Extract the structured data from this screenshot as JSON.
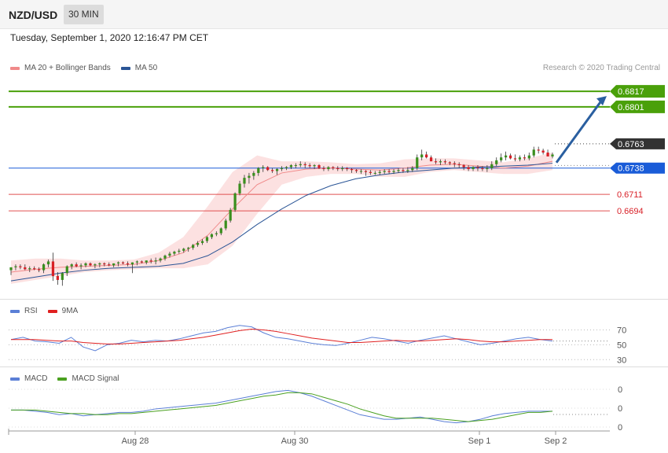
{
  "header": {
    "pair": "NZD/USD",
    "timeframe": "30 MIN",
    "datetime": "Tuesday, September 1, 2020 12:16:47 PM CET"
  },
  "legends": {
    "main": [
      {
        "label": "MA 20 + Bollinger Bands",
        "color": "#f08a8a"
      },
      {
        "label": "MA 50",
        "color": "#2a5596"
      }
    ],
    "rsi": [
      {
        "label": "RSI",
        "color": "#5b7fd6"
      },
      {
        "label": "9MA",
        "color": "#e02020"
      }
    ],
    "macd": [
      {
        "label": "MACD",
        "color": "#5b7fd6"
      },
      {
        "label": "MACD Signal",
        "color": "#4aa020"
      }
    ]
  },
  "credit": "Research © 2020 Trading Central",
  "colors": {
    "up": "#3a8f1e",
    "down": "#d81f26",
    "resistance": "#4aa00a",
    "pivot": "#1a5cd8",
    "support": "#e05050",
    "current": "#333333"
  },
  "chart_data": [
    {
      "type": "candlestick",
      "title": "NZD/USD",
      "timeframe": "30 MIN",
      "x_tick_labels": [
        "Aug 28",
        "Aug 30",
        "Sep 1",
        "Sep 2"
      ],
      "ylim": [
        0.661,
        0.683
      ],
      "candles": {
        "open": [
          0.6633,
          0.6636,
          0.6637,
          0.6636,
          0.6634,
          0.6635,
          0.6634,
          0.6633,
          0.6639,
          0.6642,
          0.6627,
          0.6623,
          0.663,
          0.6637,
          0.6639,
          0.6637,
          0.6638,
          0.664,
          0.6638,
          0.6639,
          0.664,
          0.6639,
          0.6638,
          0.664,
          0.6641,
          0.664,
          0.6639,
          0.6641,
          0.6642,
          0.6641,
          0.6643,
          0.6642,
          0.6643,
          0.6645,
          0.6648,
          0.665,
          0.6652,
          0.6653,
          0.6655,
          0.6656,
          0.6659,
          0.6661,
          0.6663,
          0.6667,
          0.667,
          0.6671,
          0.6676,
          0.6684,
          0.6695,
          0.6712,
          0.6722,
          0.6728,
          0.673,
          0.6733,
          0.6738,
          0.6739,
          0.6736,
          0.6735,
          0.6737,
          0.6738,
          0.6739,
          0.6741,
          0.6741,
          0.6742,
          0.6741,
          0.674,
          0.6741,
          0.6738,
          0.6737,
          0.6739,
          0.6738,
          0.6737,
          0.6738,
          0.6737,
          0.6736,
          0.6735,
          0.6735,
          0.6734,
          0.6733,
          0.6733,
          0.6734,
          0.6735,
          0.6734,
          0.6735,
          0.6736,
          0.6735,
          0.6736,
          0.6738,
          0.6749,
          0.6752,
          0.6749,
          0.6745,
          0.6744,
          0.6745,
          0.6744,
          0.6743,
          0.6742,
          0.6741,
          0.6739,
          0.6737,
          0.6739,
          0.6738,
          0.6737,
          0.6738,
          0.6742,
          0.6746,
          0.6749,
          0.6751,
          0.6748,
          0.6747,
          0.6749,
          0.6748,
          0.6751,
          0.6757,
          0.6756,
          0.6754,
          0.675
        ],
        "high": [
          0.6635,
          0.6639,
          0.6639,
          0.6639,
          0.6637,
          0.6637,
          0.6636,
          0.664,
          0.6644,
          0.6651,
          0.6631,
          0.6631,
          0.6638,
          0.664,
          0.6641,
          0.664,
          0.6641,
          0.6641,
          0.664,
          0.6641,
          0.6641,
          0.6641,
          0.664,
          0.6642,
          0.6642,
          0.6642,
          0.6641,
          0.6643,
          0.6643,
          0.6643,
          0.6645,
          0.6646,
          0.6646,
          0.6649,
          0.6652,
          0.6653,
          0.6655,
          0.6656,
          0.6657,
          0.666,
          0.6663,
          0.6665,
          0.6668,
          0.6671,
          0.6673,
          0.6677,
          0.6686,
          0.6697,
          0.6713,
          0.6725,
          0.6731,
          0.6733,
          0.6735,
          0.6739,
          0.6741,
          0.674,
          0.6738,
          0.6738,
          0.674,
          0.674,
          0.6742,
          0.6743,
          0.6745,
          0.6744,
          0.6743,
          0.6742,
          0.6742,
          0.674,
          0.674,
          0.674,
          0.674,
          0.674,
          0.6739,
          0.6738,
          0.6737,
          0.6737,
          0.6736,
          0.6736,
          0.6735,
          0.6736,
          0.6737,
          0.6737,
          0.6737,
          0.6738,
          0.6738,
          0.6739,
          0.674,
          0.6752,
          0.6757,
          0.6755,
          0.6751,
          0.6748,
          0.6747,
          0.6747,
          0.6745,
          0.6745,
          0.6744,
          0.6742,
          0.6741,
          0.674,
          0.6741,
          0.674,
          0.6741,
          0.6745,
          0.6749,
          0.6753,
          0.6755,
          0.6753,
          0.6752,
          0.6751,
          0.6752,
          0.6754,
          0.676,
          0.676,
          0.6758,
          0.6757,
          0.6754
        ],
        "low": [
          0.6628,
          0.6633,
          0.6634,
          0.6633,
          0.6631,
          0.6633,
          0.6631,
          0.663,
          0.6636,
          0.6622,
          0.6618,
          0.6617,
          0.6627,
          0.6634,
          0.6636,
          0.6634,
          0.6636,
          0.6637,
          0.6635,
          0.6636,
          0.6637,
          0.6637,
          0.6636,
          0.6637,
          0.6639,
          0.6637,
          0.663,
          0.6638,
          0.664,
          0.6639,
          0.664,
          0.6639,
          0.6641,
          0.6643,
          0.6646,
          0.6648,
          0.665,
          0.6651,
          0.6652,
          0.6654,
          0.6657,
          0.6659,
          0.6661,
          0.6665,
          0.6668,
          0.6669,
          0.6674,
          0.6682,
          0.6693,
          0.671,
          0.6718,
          0.6722,
          0.6726,
          0.673,
          0.6734,
          0.6735,
          0.6733,
          0.6731,
          0.6735,
          0.6736,
          0.6737,
          0.6738,
          0.6739,
          0.6738,
          0.6738,
          0.6737,
          0.6737,
          0.6735,
          0.6735,
          0.6736,
          0.6735,
          0.6735,
          0.6735,
          0.6733,
          0.6733,
          0.6732,
          0.673,
          0.6731,
          0.6731,
          0.6731,
          0.6732,
          0.6732,
          0.6732,
          0.6733,
          0.6733,
          0.6733,
          0.6734,
          0.6736,
          0.6746,
          0.6748,
          0.6745,
          0.6742,
          0.6741,
          0.6742,
          0.6741,
          0.6739,
          0.6738,
          0.6736,
          0.6735,
          0.6735,
          0.6735,
          0.6735,
          0.6734,
          0.6736,
          0.674,
          0.6744,
          0.6746,
          0.6747,
          0.6745,
          0.6745,
          0.6746,
          0.6746,
          0.6749,
          0.6753,
          0.6752,
          0.675,
          0.6748
        ],
        "close": [
          0.6636,
          0.6637,
          0.6636,
          0.6634,
          0.6635,
          0.6634,
          0.6633,
          0.6639,
          0.6642,
          0.6627,
          0.6623,
          0.663,
          0.6637,
          0.6639,
          0.6637,
          0.6638,
          0.664,
          0.6638,
          0.6639,
          0.664,
          0.6639,
          0.6638,
          0.664,
          0.6641,
          0.664,
          0.6639,
          0.6641,
          0.6642,
          0.6641,
          0.6643,
          0.6642,
          0.6643,
          0.6645,
          0.6648,
          0.665,
          0.6652,
          0.6653,
          0.6655,
          0.6656,
          0.6659,
          0.6661,
          0.6663,
          0.6667,
          0.667,
          0.6671,
          0.6676,
          0.6684,
          0.6695,
          0.6712,
          0.6722,
          0.6728,
          0.673,
          0.6733,
          0.6738,
          0.6739,
          0.6736,
          0.6735,
          0.6737,
          0.6738,
          0.6739,
          0.6741,
          0.6741,
          0.6742,
          0.6741,
          0.674,
          0.6741,
          0.6738,
          0.6737,
          0.6739,
          0.6738,
          0.6737,
          0.6738,
          0.6737,
          0.6736,
          0.6735,
          0.6735,
          0.6734,
          0.6733,
          0.6733,
          0.6734,
          0.6735,
          0.6734,
          0.6735,
          0.6736,
          0.6735,
          0.6736,
          0.6738,
          0.6749,
          0.6752,
          0.6749,
          0.6745,
          0.6744,
          0.6745,
          0.6744,
          0.6743,
          0.6742,
          0.6741,
          0.6739,
          0.6737,
          0.6739,
          0.6738,
          0.6737,
          0.6738,
          0.6742,
          0.6746,
          0.6749,
          0.6751,
          0.6748,
          0.6747,
          0.6749,
          0.6748,
          0.6751,
          0.6757,
          0.6756,
          0.6754,
          0.675,
          0.6752
        ]
      },
      "ma20_sample": [
        0.6631,
        0.6634,
        0.6636,
        0.6637,
        0.6638,
        0.6639,
        0.6643,
        0.6651,
        0.6669,
        0.6696,
        0.6721,
        0.6733,
        0.6737,
        0.6738,
        0.6737,
        0.6736,
        0.6738,
        0.6741,
        0.6742,
        0.674,
        0.6738,
        0.674,
        0.6745
      ],
      "ma50_sample": [
        0.6622,
        0.6626,
        0.663,
        0.6633,
        0.6635,
        0.6636,
        0.6637,
        0.664,
        0.6648,
        0.6662,
        0.668,
        0.6696,
        0.671,
        0.672,
        0.6727,
        0.6731,
        0.6734,
        0.6736,
        0.6738,
        0.6739,
        0.674,
        0.6741,
        0.6743
      ],
      "bollinger_width_sample": [
        0.0012,
        0.0011,
        0.0009,
        0.0006,
        0.0005,
        0.0005,
        0.0008,
        0.0016,
        0.003,
        0.0038,
        0.003,
        0.0012,
        0.0008,
        0.0006,
        0.0005,
        0.0007,
        0.0009,
        0.0007,
        0.0006,
        0.0006,
        0.0006,
        0.0008,
        0.0009
      ],
      "levels": [
        {
          "value": 0.6817,
          "label": "0.6817",
          "kind": "resistance"
        },
        {
          "value": 0.6801,
          "label": "0.6801",
          "kind": "resistance"
        },
        {
          "value": 0.6763,
          "label": "0.6763",
          "kind": "current"
        },
        {
          "value": 0.6738,
          "label": "0.6738",
          "kind": "pivot"
        },
        {
          "value": 0.6711,
          "label": "0.6711",
          "kind": "support"
        },
        {
          "value": 0.6694,
          "label": "0.6694",
          "kind": "support"
        }
      ],
      "arrow": {
        "from": 0.6755,
        "to": 0.6817,
        "direction": "up"
      }
    },
    {
      "type": "line",
      "name": "RSI panel",
      "y_tick_labels": [
        "70",
        "50",
        "30"
      ],
      "ylim": [
        25,
        80
      ],
      "series": [
        {
          "name": "RSI",
          "values": [
            57,
            60,
            55,
            54,
            52,
            60,
            47,
            42,
            50,
            52,
            56,
            54,
            56,
            55,
            58,
            62,
            66,
            68,
            73,
            76,
            74,
            66,
            60,
            58,
            55,
            52,
            50,
            49,
            52,
            56,
            60,
            58,
            55,
            52,
            56,
            59,
            62,
            58,
            54,
            50,
            52,
            55,
            58,
            60,
            57,
            55
          ]
        },
        {
          "name": "9MA",
          "values": [
            57,
            57,
            57,
            56,
            55,
            55,
            53,
            52,
            51,
            51,
            52,
            53,
            54,
            55,
            56,
            58,
            60,
            63,
            66,
            69,
            71,
            70,
            68,
            65,
            62,
            59,
            57,
            55,
            53,
            53,
            54,
            55,
            56,
            55,
            55,
            56,
            57,
            58,
            57,
            55,
            54,
            54,
            55,
            56,
            57,
            57
          ]
        }
      ]
    },
    {
      "type": "line",
      "name": "MACD panel",
      "y_tick_labels": [
        "0",
        "0",
        "0"
      ],
      "series": [
        {
          "name": "MACD",
          "values": [
            2,
            2,
            1,
            0,
            -2,
            -1,
            -3,
            -2,
            -1,
            0,
            0,
            1,
            3,
            4,
            5,
            6,
            7,
            8,
            10,
            12,
            14,
            16,
            18,
            19,
            17,
            14,
            10,
            6,
            2,
            -2,
            -4,
            -6,
            -6,
            -5,
            -4,
            -6,
            -8,
            -9,
            -8,
            -6,
            -3,
            -1,
            0,
            1,
            1,
            1
          ]
        },
        {
          "name": "MACD Signal",
          "values": [
            2,
            2,
            2,
            1,
            0,
            -1,
            -1,
            -2,
            -2,
            -1,
            -1,
            0,
            1,
            2,
            3,
            4,
            5,
            6,
            8,
            10,
            12,
            14,
            15,
            17,
            17,
            16,
            13,
            10,
            7,
            3,
            0,
            -3,
            -5,
            -5,
            -5,
            -5,
            -6,
            -7,
            -8,
            -7,
            -6,
            -4,
            -2,
            0,
            0,
            1
          ]
        }
      ]
    }
  ]
}
